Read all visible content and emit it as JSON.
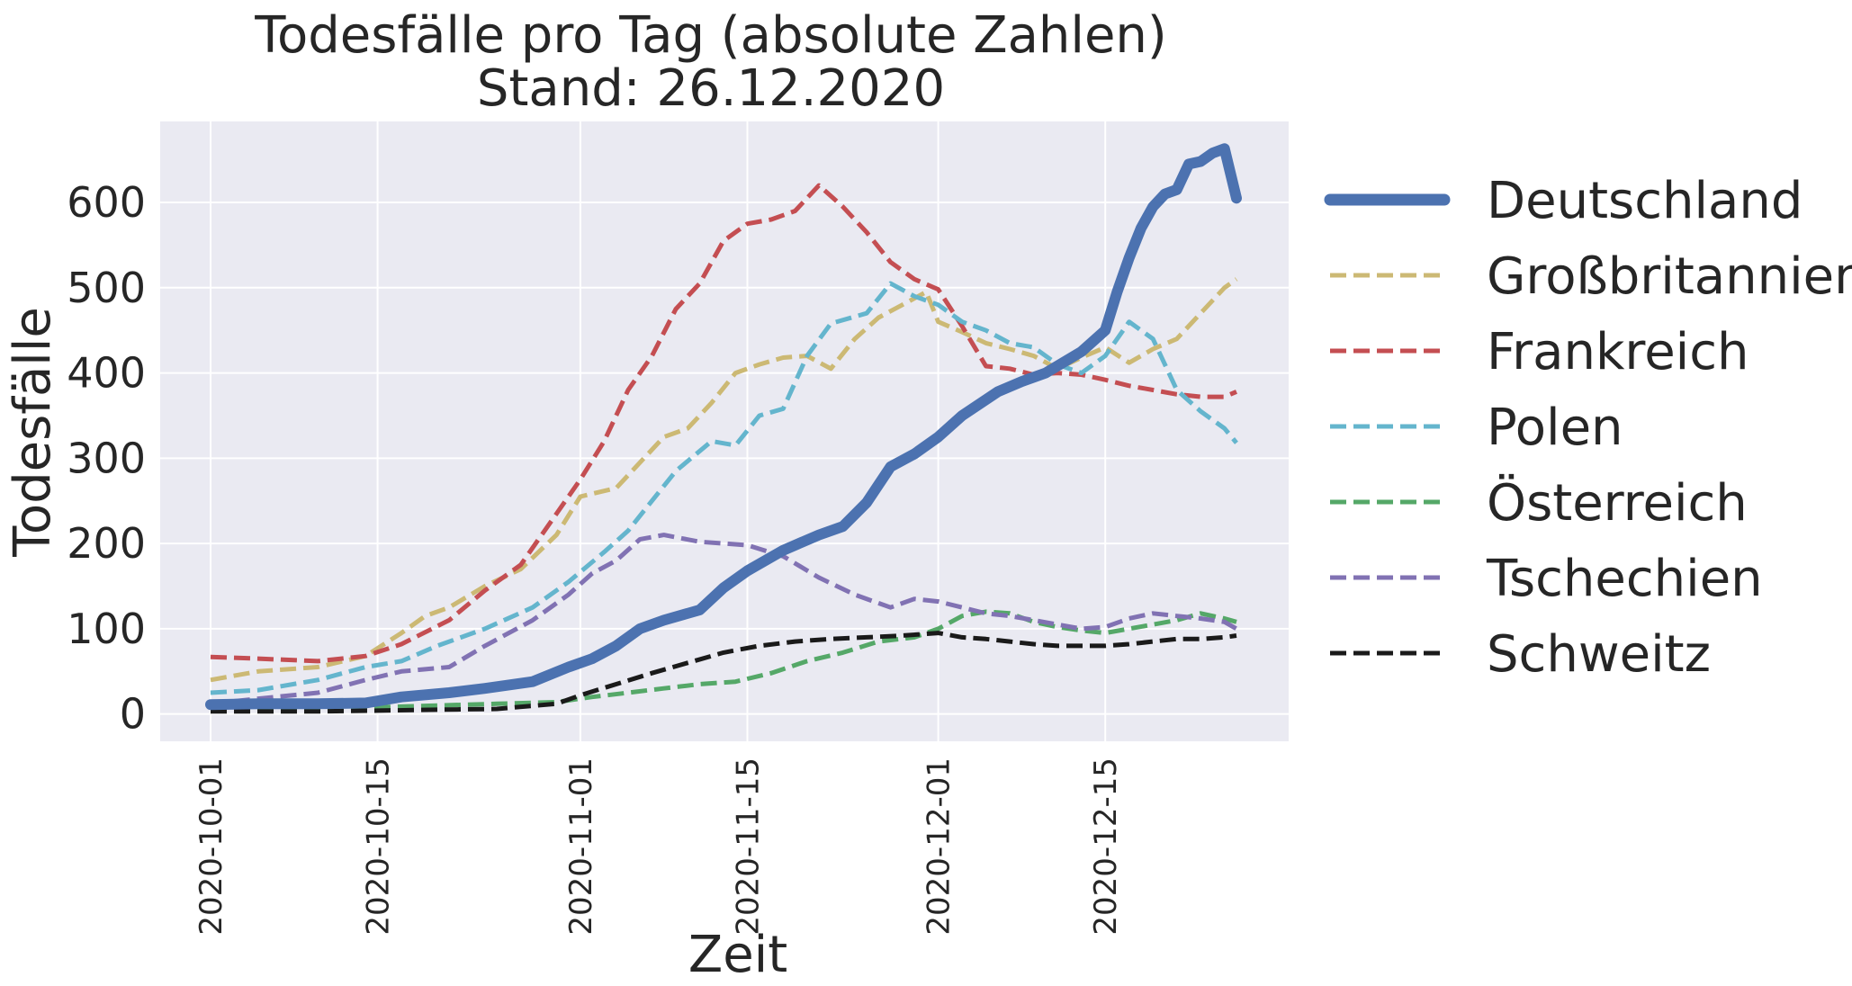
{
  "chart_data": {
    "type": "line",
    "title": "Todesfälle pro Tag (absolute Zahlen)",
    "subtitle": "Stand: 26.12.2020",
    "xlabel": "Zeit",
    "ylabel": "Todesfälle",
    "x_start": "2020-10-01",
    "x_end": "2020-12-26",
    "ylim": [
      -32,
      695
    ],
    "yticks": [
      0,
      100,
      200,
      300,
      400,
      500,
      600
    ],
    "ytick_labels": [
      "0",
      "100",
      "200",
      "300",
      "400",
      "500",
      "600"
    ],
    "xticks": [
      "2020-10-01",
      "2020-10-15",
      "2020-11-01",
      "2020-11-15",
      "2020-12-01",
      "2020-12-15"
    ],
    "grid": true,
    "background": "#eaeaf2",
    "legend_position": "outside-right",
    "series": [
      {
        "name": "Deutschland",
        "color": "#4c72b0",
        "style": "solid-thick",
        "points": [
          [
            "2020-10-01",
            11
          ],
          [
            "2020-10-05",
            12
          ],
          [
            "2020-10-10",
            12
          ],
          [
            "2020-10-14",
            13
          ],
          [
            "2020-10-17",
            20
          ],
          [
            "2020-10-21",
            25
          ],
          [
            "2020-10-24",
            30
          ],
          [
            "2020-10-28",
            38
          ],
          [
            "2020-10-31",
            55
          ],
          [
            "2020-11-02",
            65
          ],
          [
            "2020-11-04",
            80
          ],
          [
            "2020-11-06",
            100
          ],
          [
            "2020-11-08",
            110
          ],
          [
            "2020-11-11",
            122
          ],
          [
            "2020-11-13",
            148
          ],
          [
            "2020-11-15",
            168
          ],
          [
            "2020-11-18",
            192
          ],
          [
            "2020-11-21",
            210
          ],
          [
            "2020-11-23",
            220
          ],
          [
            "2020-11-25",
            248
          ],
          [
            "2020-11-27",
            290
          ],
          [
            "2020-11-29",
            305
          ],
          [
            "2020-12-01",
            325
          ],
          [
            "2020-12-03",
            350
          ],
          [
            "2020-12-06",
            378
          ],
          [
            "2020-12-08",
            390
          ],
          [
            "2020-12-10",
            400
          ],
          [
            "2020-12-13",
            425
          ],
          [
            "2020-12-15",
            450
          ],
          [
            "2020-12-16",
            495
          ],
          [
            "2020-12-17",
            535
          ],
          [
            "2020-12-18",
            570
          ],
          [
            "2020-12-19",
            595
          ],
          [
            "2020-12-20",
            610
          ],
          [
            "2020-12-21",
            615
          ],
          [
            "2020-12-22",
            645
          ],
          [
            "2020-12-23",
            648
          ],
          [
            "2020-12-24",
            658
          ],
          [
            "2020-12-25",
            663
          ],
          [
            "2020-12-26",
            605
          ]
        ]
      },
      {
        "name": "Großbritannien",
        "color": "#ccb974",
        "style": "dashed",
        "points": [
          [
            "2020-10-01",
            40
          ],
          [
            "2020-10-05",
            50
          ],
          [
            "2020-10-10",
            55
          ],
          [
            "2020-10-14",
            68
          ],
          [
            "2020-10-17",
            95
          ],
          [
            "2020-10-19",
            115
          ],
          [
            "2020-10-21",
            125
          ],
          [
            "2020-10-24",
            150
          ],
          [
            "2020-10-27",
            170
          ],
          [
            "2020-10-30",
            210
          ],
          [
            "2020-11-01",
            255
          ],
          [
            "2020-11-04",
            265
          ],
          [
            "2020-11-06",
            295
          ],
          [
            "2020-11-08",
            325
          ],
          [
            "2020-11-10",
            335
          ],
          [
            "2020-11-12",
            365
          ],
          [
            "2020-11-14",
            400
          ],
          [
            "2020-11-16",
            410
          ],
          [
            "2020-11-18",
            418
          ],
          [
            "2020-11-20",
            420
          ],
          [
            "2020-11-22",
            405
          ],
          [
            "2020-11-24",
            440
          ],
          [
            "2020-11-26",
            465
          ],
          [
            "2020-11-28",
            480
          ],
          [
            "2020-11-30",
            495
          ],
          [
            "2020-12-01",
            460
          ],
          [
            "2020-12-03",
            448
          ],
          [
            "2020-12-05",
            435
          ],
          [
            "2020-12-07",
            428
          ],
          [
            "2020-12-09",
            420
          ],
          [
            "2020-12-11",
            405
          ],
          [
            "2020-12-13",
            418
          ],
          [
            "2020-12-15",
            430
          ],
          [
            "2020-12-17",
            412
          ],
          [
            "2020-12-19",
            428
          ],
          [
            "2020-12-21",
            440
          ],
          [
            "2020-12-23",
            470
          ],
          [
            "2020-12-25",
            500
          ],
          [
            "2020-12-26",
            510
          ]
        ]
      },
      {
        "name": "Frankreich",
        "color": "#c44e52",
        "style": "dashed",
        "points": [
          [
            "2020-10-01",
            67
          ],
          [
            "2020-10-05",
            65
          ],
          [
            "2020-10-10",
            62
          ],
          [
            "2020-10-14",
            68
          ],
          [
            "2020-10-17",
            82
          ],
          [
            "2020-10-21",
            110
          ],
          [
            "2020-10-24",
            145
          ],
          [
            "2020-10-27",
            175
          ],
          [
            "2020-10-30",
            235
          ],
          [
            "2020-11-01",
            275
          ],
          [
            "2020-11-03",
            320
          ],
          [
            "2020-11-05",
            380
          ],
          [
            "2020-11-07",
            420
          ],
          [
            "2020-11-09",
            475
          ],
          [
            "2020-11-11",
            505
          ],
          [
            "2020-11-13",
            555
          ],
          [
            "2020-11-15",
            575
          ],
          [
            "2020-11-17",
            580
          ],
          [
            "2020-11-19",
            590
          ],
          [
            "2020-11-21",
            620
          ],
          [
            "2020-11-23",
            595
          ],
          [
            "2020-11-25",
            565
          ],
          [
            "2020-11-27",
            530
          ],
          [
            "2020-11-29",
            510
          ],
          [
            "2020-12-01",
            498
          ],
          [
            "2020-12-03",
            455
          ],
          [
            "2020-12-05",
            408
          ],
          [
            "2020-12-07",
            405
          ],
          [
            "2020-12-09",
            398
          ],
          [
            "2020-12-11",
            400
          ],
          [
            "2020-12-13",
            398
          ],
          [
            "2020-12-15",
            392
          ],
          [
            "2020-12-17",
            385
          ],
          [
            "2020-12-19",
            380
          ],
          [
            "2020-12-21",
            375
          ],
          [
            "2020-12-23",
            372
          ],
          [
            "2020-12-25",
            372
          ],
          [
            "2020-12-26",
            378
          ]
        ]
      },
      {
        "name": "Polen",
        "color": "#64b5cd",
        "style": "dashed",
        "points": [
          [
            "2020-10-01",
            25
          ],
          [
            "2020-10-05",
            28
          ],
          [
            "2020-10-10",
            40
          ],
          [
            "2020-10-14",
            55
          ],
          [
            "2020-10-17",
            62
          ],
          [
            "2020-10-20",
            80
          ],
          [
            "2020-10-24",
            100
          ],
          [
            "2020-10-28",
            125
          ],
          [
            "2020-10-31",
            155
          ],
          [
            "2020-11-03",
            190
          ],
          [
            "2020-11-05",
            215
          ],
          [
            "2020-11-07",
            250
          ],
          [
            "2020-11-09",
            285
          ],
          [
            "2020-11-12",
            320
          ],
          [
            "2020-11-14",
            315
          ],
          [
            "2020-11-16",
            350
          ],
          [
            "2020-11-18",
            358
          ],
          [
            "2020-11-20",
            420
          ],
          [
            "2020-11-22",
            458
          ],
          [
            "2020-11-25",
            470
          ],
          [
            "2020-11-27",
            505
          ],
          [
            "2020-11-29",
            490
          ],
          [
            "2020-12-01",
            480
          ],
          [
            "2020-12-03",
            460
          ],
          [
            "2020-12-05",
            450
          ],
          [
            "2020-12-07",
            435
          ],
          [
            "2020-12-09",
            430
          ],
          [
            "2020-12-11",
            410
          ],
          [
            "2020-12-13",
            400
          ],
          [
            "2020-12-15",
            420
          ],
          [
            "2020-12-17",
            460
          ],
          [
            "2020-12-19",
            440
          ],
          [
            "2020-12-21",
            380
          ],
          [
            "2020-12-23",
            355
          ],
          [
            "2020-12-25",
            335
          ],
          [
            "2020-12-26",
            318
          ]
        ]
      },
      {
        "name": "Österreich",
        "color": "#55a868",
        "style": "dashed",
        "points": [
          [
            "2020-10-01",
            5
          ],
          [
            "2020-10-05",
            5
          ],
          [
            "2020-10-10",
            6
          ],
          [
            "2020-10-15",
            8
          ],
          [
            "2020-10-20",
            10
          ],
          [
            "2020-10-25",
            12
          ],
          [
            "2020-10-30",
            14
          ],
          [
            "2020-11-02",
            20
          ],
          [
            "2020-11-05",
            25
          ],
          [
            "2020-11-08",
            30
          ],
          [
            "2020-11-11",
            35
          ],
          [
            "2020-11-14",
            38
          ],
          [
            "2020-11-17",
            48
          ],
          [
            "2020-11-20",
            62
          ],
          [
            "2020-11-23",
            72
          ],
          [
            "2020-11-26",
            85
          ],
          [
            "2020-11-29",
            90
          ],
          [
            "2020-12-01",
            100
          ],
          [
            "2020-12-03",
            115
          ],
          [
            "2020-12-05",
            120
          ],
          [
            "2020-12-07",
            118
          ],
          [
            "2020-12-09",
            108
          ],
          [
            "2020-12-11",
            102
          ],
          [
            "2020-12-13",
            98
          ],
          [
            "2020-12-15",
            95
          ],
          [
            "2020-12-17",
            100
          ],
          [
            "2020-12-19",
            105
          ],
          [
            "2020-12-21",
            110
          ],
          [
            "2020-12-23",
            118
          ],
          [
            "2020-12-25",
            112
          ],
          [
            "2020-12-26",
            108
          ]
        ]
      },
      {
        "name": "Tschechien",
        "color": "#8172b3",
        "style": "dashed",
        "points": [
          [
            "2020-10-01",
            12
          ],
          [
            "2020-10-05",
            18
          ],
          [
            "2020-10-10",
            25
          ],
          [
            "2020-10-14",
            40
          ],
          [
            "2020-10-17",
            50
          ],
          [
            "2020-10-21",
            55
          ],
          [
            "2020-10-24",
            80
          ],
          [
            "2020-10-28",
            110
          ],
          [
            "2020-10-31",
            140
          ],
          [
            "2020-11-02",
            165
          ],
          [
            "2020-11-04",
            180
          ],
          [
            "2020-11-06",
            205
          ],
          [
            "2020-11-08",
            210
          ],
          [
            "2020-11-11",
            202
          ],
          [
            "2020-11-13",
            200
          ],
          [
            "2020-11-15",
            198
          ],
          [
            "2020-11-18",
            185
          ],
          [
            "2020-11-21",
            160
          ],
          [
            "2020-11-24",
            140
          ],
          [
            "2020-11-27",
            125
          ],
          [
            "2020-11-29",
            135
          ],
          [
            "2020-12-01",
            132
          ],
          [
            "2020-12-03",
            125
          ],
          [
            "2020-12-05",
            118
          ],
          [
            "2020-12-07",
            115
          ],
          [
            "2020-12-09",
            110
          ],
          [
            "2020-12-11",
            105
          ],
          [
            "2020-12-13",
            100
          ],
          [
            "2020-12-15",
            102
          ],
          [
            "2020-12-17",
            112
          ],
          [
            "2020-12-19",
            118
          ],
          [
            "2020-12-21",
            115
          ],
          [
            "2020-12-23",
            112
          ],
          [
            "2020-12-25",
            108
          ],
          [
            "2020-12-26",
            100
          ]
        ]
      },
      {
        "name": "Schweitz",
        "color": "#1a1a1a",
        "style": "dashed",
        "points": [
          [
            "2020-10-01",
            3
          ],
          [
            "2020-10-05",
            3
          ],
          [
            "2020-10-10",
            3
          ],
          [
            "2020-10-15",
            4
          ],
          [
            "2020-10-20",
            5
          ],
          [
            "2020-10-25",
            6
          ],
          [
            "2020-10-30",
            12
          ],
          [
            "2020-11-01",
            22
          ],
          [
            "2020-11-04",
            35
          ],
          [
            "2020-11-07",
            48
          ],
          [
            "2020-11-10",
            60
          ],
          [
            "2020-11-13",
            72
          ],
          [
            "2020-11-16",
            80
          ],
          [
            "2020-11-19",
            85
          ],
          [
            "2020-11-22",
            88
          ],
          [
            "2020-11-25",
            90
          ],
          [
            "2020-11-28",
            92
          ],
          [
            "2020-12-01",
            95
          ],
          [
            "2020-12-03",
            90
          ],
          [
            "2020-12-05",
            88
          ],
          [
            "2020-12-07",
            85
          ],
          [
            "2020-12-09",
            82
          ],
          [
            "2020-12-11",
            80
          ],
          [
            "2020-12-13",
            80
          ],
          [
            "2020-12-15",
            80
          ],
          [
            "2020-12-17",
            82
          ],
          [
            "2020-12-19",
            85
          ],
          [
            "2020-12-21",
            88
          ],
          [
            "2020-12-23",
            88
          ],
          [
            "2020-12-25",
            90
          ],
          [
            "2020-12-26",
            92
          ]
        ]
      }
    ]
  }
}
